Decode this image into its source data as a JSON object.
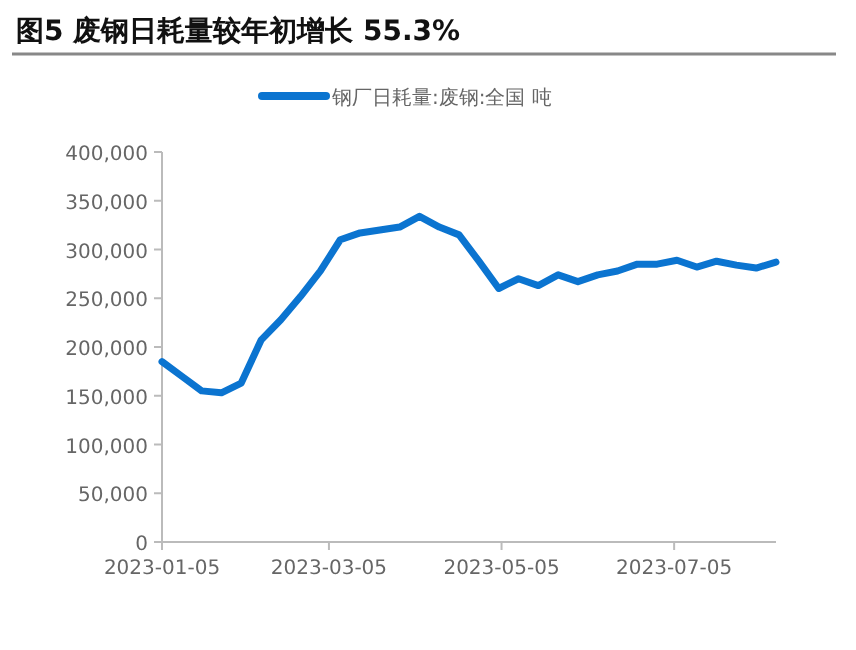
{
  "chart_data": {
    "type": "line",
    "title": "图5  废钢日耗量较年初增长 55.3%",
    "legend": "top",
    "x": [
      "2023-01-05",
      "2023-01-12",
      "2023-01-19",
      "2023-01-26",
      "2023-02-02",
      "2023-02-09",
      "2023-02-16",
      "2023-02-23",
      "2023-03-02",
      "2023-03-09",
      "2023-03-16",
      "2023-03-23",
      "2023-03-30",
      "2023-04-06",
      "2023-04-13",
      "2023-04-20",
      "2023-04-27",
      "2023-05-04",
      "2023-05-11",
      "2023-05-18",
      "2023-05-25",
      "2023-06-01",
      "2023-06-08",
      "2023-06-15",
      "2023-06-22",
      "2023-06-29",
      "2023-07-06",
      "2023-07-13",
      "2023-07-20",
      "2023-07-27",
      "2023-08-03",
      "2023-08-10"
    ],
    "series": [
      {
        "name": "钢厂日耗量:废钢:全国  吨",
        "color": "#0b74d0",
        "values": [
          185000,
          170000,
          155000,
          153000,
          163000,
          207000,
          228000,
          252000,
          278000,
          310000,
          317000,
          320000,
          323000,
          334000,
          323000,
          315000,
          288000,
          260000,
          270000,
          263000,
          274000,
          267000,
          274000,
          278000,
          285000,
          285000,
          289000,
          282000,
          288000,
          284000,
          281000,
          287000
        ]
      }
    ],
    "xlim": [
      "2023-01-05",
      "2023-08-10"
    ],
    "xticks": [
      {
        "value": "2023-01-05",
        "label": "2023-01-05"
      },
      {
        "value": "2023-03-05",
        "label": "2023-03-05"
      },
      {
        "value": "2023-05-05",
        "label": "2023-05-05"
      },
      {
        "value": "2023-07-05",
        "label": "2023-07-05"
      }
    ],
    "ylim": [
      0,
      400000
    ],
    "yticks": [
      {
        "value": 0,
        "label": "0"
      },
      {
        "value": 50000,
        "label": "50,000"
      },
      {
        "value": 100000,
        "label": "100,000"
      },
      {
        "value": 150000,
        "label": "150,000"
      },
      {
        "value": 200000,
        "label": "200,000"
      },
      {
        "value": 250000,
        "label": "250,000"
      },
      {
        "value": 300000,
        "label": "300,000"
      },
      {
        "value": 350000,
        "label": "350,000"
      },
      {
        "value": 400000,
        "label": "400,000"
      }
    ],
    "grid": false,
    "line_style": "solid",
    "marker": "none"
  }
}
